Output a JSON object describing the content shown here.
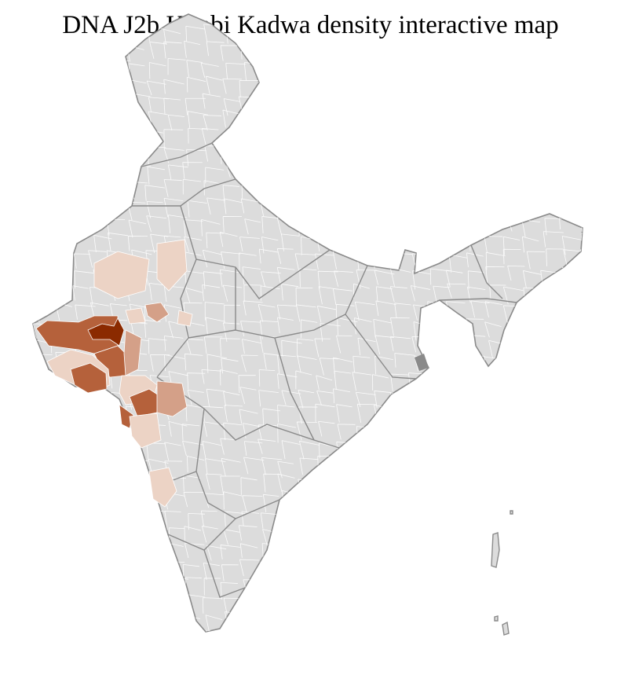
{
  "title": "DNA J2b Kunbi Kadwa density interactive map",
  "colors": {
    "no_data": "#dcdcdc",
    "state_border": "#8a8a8a",
    "district_border": "#ffffff",
    "density_levels": [
      "#ecd3c5",
      "#d4a088",
      "#b5613b",
      "#8b2a00"
    ]
  }
}
